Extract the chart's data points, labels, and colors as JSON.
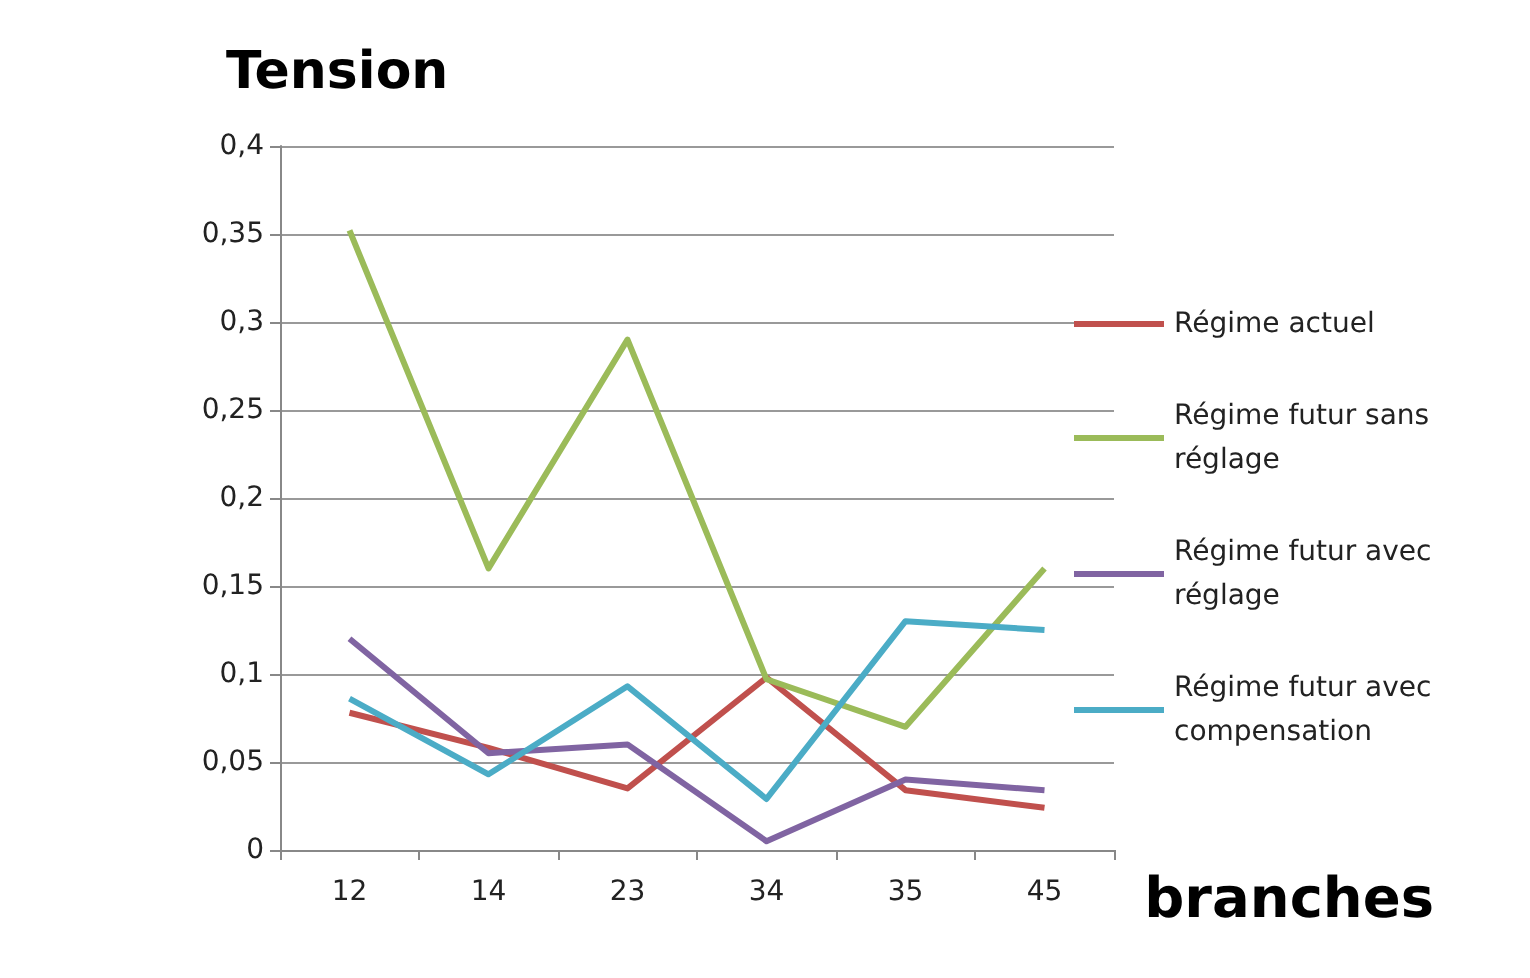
{
  "chart_data": {
    "type": "line",
    "title": "Tension",
    "xlabel": "branches",
    "categories": [
      "12",
      "14",
      "23",
      "34",
      "35",
      "45"
    ],
    "series": [
      {
        "name": "Régime actuel",
        "color": "#c0504d",
        "values": [
          0.078,
          0.058,
          0.035,
          0.098,
          0.034,
          0.024
        ]
      },
      {
        "name": "Régime futur sans réglage",
        "color": "#9bbb59",
        "values": [
          0.352,
          0.16,
          0.29,
          0.097,
          0.07,
          0.16
        ]
      },
      {
        "name": "Régime futur avec réglage",
        "color": "#8064a2",
        "values": [
          0.12,
          0.055,
          0.06,
          0.005,
          0.04,
          0.034
        ]
      },
      {
        "name": "Régime futur avec compensation",
        "color": "#4bacc6",
        "values": [
          0.086,
          0.043,
          0.093,
          0.029,
          0.13,
          0.125
        ]
      }
    ],
    "ylim": [
      0,
      0.4
    ],
    "yticks": [
      {
        "value": 0,
        "label": "0"
      },
      {
        "value": 0.05,
        "label": "0,05"
      },
      {
        "value": 0.1,
        "label": "0,1"
      },
      {
        "value": 0.15,
        "label": "0,15"
      },
      {
        "value": 0.2,
        "label": "0,2"
      },
      {
        "value": 0.25,
        "label": "0,25"
      },
      {
        "value": 0.3,
        "label": "0,3"
      },
      {
        "value": 0.35,
        "label": "0,35"
      },
      {
        "value": 0.4,
        "label": "0,4"
      }
    ],
    "grid": "y",
    "legend": "right",
    "marker": "none",
    "line_style": "solid"
  }
}
